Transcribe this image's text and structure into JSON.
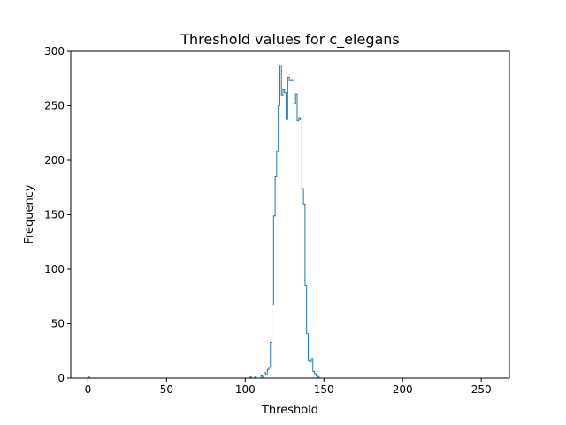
{
  "chart_data": {
    "type": "histogram",
    "title": "Threshold values for c_elegans",
    "xlabel": "Threshold",
    "ylabel": "Frequency",
    "xlim": [
      -10.9,
      267.9
    ],
    "ylim": [
      0,
      300
    ],
    "xticks": [
      0,
      50,
      100,
      150,
      200,
      250
    ],
    "yticks": [
      0,
      50,
      100,
      150,
      200,
      250,
      300
    ],
    "grid": false,
    "legend": "none",
    "bin_width": 1,
    "bin_start": 0,
    "values": [
      1,
      0,
      0,
      0,
      0,
      0,
      0,
      0,
      0,
      0,
      0,
      0,
      0,
      0,
      0,
      0,
      0,
      0,
      0,
      0,
      0,
      0,
      0,
      0,
      0,
      0,
      0,
      0,
      0,
      0,
      0,
      0,
      0,
      0,
      0,
      0,
      0,
      0,
      0,
      0,
      0,
      0,
      0,
      0,
      0,
      0,
      0,
      0,
      0,
      0,
      0,
      0,
      0,
      0,
      0,
      0,
      0,
      0,
      0,
      0,
      0,
      0,
      0,
      0,
      0,
      0,
      0,
      0,
      0,
      0,
      0,
      0,
      0,
      0,
      0,
      0,
      0,
      0,
      0,
      0,
      0,
      0,
      0,
      0,
      0,
      0,
      0,
      0,
      0,
      0,
      0,
      0,
      0,
      0,
      0,
      0,
      0,
      0,
      0,
      0,
      0,
      0,
      0,
      1,
      0,
      0,
      1,
      0,
      0,
      0,
      2,
      1,
      5,
      3,
      8,
      10,
      33,
      67,
      149,
      185,
      208,
      250,
      287,
      260,
      265,
      262,
      238,
      276,
      273,
      274,
      273,
      252,
      261,
      236,
      239,
      237,
      174,
      160,
      85,
      41,
      16,
      15,
      18,
      6,
      4,
      2,
      1,
      0,
      0,
      0,
      0,
      0,
      0,
      0,
      0,
      0,
      0,
      0,
      0,
      0,
      0,
      0,
      0,
      0,
      0,
      0,
      0,
      0,
      0,
      0,
      0,
      0,
      0,
      0,
      0,
      0,
      0,
      0,
      0,
      0,
      0,
      0,
      0,
      0,
      0,
      0,
      0,
      0,
      0,
      0,
      0,
      0,
      0,
      0,
      0,
      0,
      0,
      0,
      0,
      0,
      0,
      0,
      0,
      0,
      0,
      0,
      0,
      0,
      0,
      0,
      0,
      0,
      0,
      0,
      0,
      0,
      0,
      0,
      0,
      0,
      0,
      0,
      0,
      0,
      0,
      0,
      0,
      0,
      0,
      0,
      0,
      0,
      0,
      0,
      0,
      0,
      0,
      0,
      0,
      0,
      0,
      0,
      0,
      0,
      0,
      0,
      0,
      0,
      0,
      0,
      0,
      0,
      0,
      0,
      0,
      0,
      0,
      0,
      0,
      0,
      0,
      0,
      0,
      0
    ],
    "colors": {
      "series": "#1f77b4",
      "axes": "#000000",
      "background": "#ffffff"
    }
  }
}
